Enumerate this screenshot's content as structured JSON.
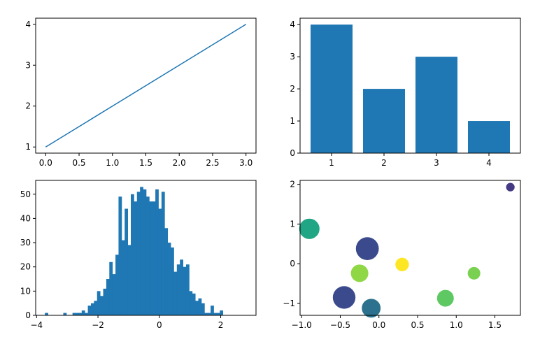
{
  "chart_data": [
    {
      "type": "line",
      "x": [
        0,
        1,
        2,
        3
      ],
      "y": [
        1,
        2,
        3,
        4
      ],
      "color": "#1f77b4",
      "xlim": [
        -0.15,
        3.15
      ],
      "ylim": [
        0.85,
        4.15
      ],
      "xticks": [
        0,
        0.5,
        1,
        1.5,
        2,
        2.5,
        3
      ],
      "xtick_labels": [
        "0.0",
        "0.5",
        "1.0",
        "1.5",
        "2.0",
        "2.5",
        "3.0"
      ],
      "yticks": [
        1,
        2,
        3,
        4
      ],
      "ytick_labels": [
        "1",
        "2",
        "3",
        "4"
      ],
      "grid": false
    },
    {
      "type": "bar",
      "categories": [
        1,
        2,
        3,
        4
      ],
      "values": [
        4,
        2,
        3,
        1
      ],
      "color": "#1f77b4",
      "xlim": [
        0.4,
        4.6
      ],
      "ylim": [
        0,
        4.2
      ],
      "xticks": [
        1,
        2,
        3,
        4
      ],
      "xtick_labels": [
        "1",
        "2",
        "3",
        "4"
      ],
      "yticks": [
        0,
        1,
        2,
        3,
        4
      ],
      "ytick_labels": [
        "0",
        "1",
        "2",
        "3",
        "4"
      ],
      "grid": false
    },
    {
      "type": "bar",
      "subtype": "histogram",
      "bin_start": -3.83,
      "bin_width": 0.1,
      "counts": [
        0,
        1,
        0,
        0,
        0,
        0,
        0,
        1,
        0,
        0,
        1,
        1,
        1,
        2,
        1,
        4,
        5,
        6,
        10,
        8,
        11,
        15,
        22,
        17,
        25,
        49,
        31,
        44,
        29,
        50,
        47,
        51,
        53,
        52,
        49,
        47,
        47,
        52,
        44,
        51,
        36,
        30,
        28,
        18,
        21,
        23,
        20,
        21,
        10,
        9,
        6,
        7,
        5,
        1,
        1,
        4,
        1,
        1,
        2
      ],
      "color": "#1f77b4",
      "xlim": [
        -4.03,
        3.15
      ],
      "ylim": [
        0,
        55.7
      ],
      "xticks": [
        -4,
        -2,
        0,
        2
      ],
      "xtick_labels": [
        "−4",
        "−2",
        "0",
        "2"
      ],
      "yticks": [
        0,
        10,
        20,
        30,
        40,
        50
      ],
      "ytick_labels": [
        "0",
        "10",
        "20",
        "30",
        "40",
        "50"
      ],
      "grid": false
    },
    {
      "type": "scatter",
      "points": [
        {
          "x": 1.7,
          "y": 1.93,
          "size": 60,
          "color": "#443a83"
        },
        {
          "x": -0.9,
          "y": 0.88,
          "size": 340,
          "color": "#21a685"
        },
        {
          "x": -0.15,
          "y": 0.38,
          "size": 430,
          "color": "#3b4a8c"
        },
        {
          "x": 0.3,
          "y": -0.02,
          "size": 150,
          "color": "#fde725"
        },
        {
          "x": -0.25,
          "y": -0.24,
          "size": 250,
          "color": "#8fd744"
        },
        {
          "x": 1.23,
          "y": -0.24,
          "size": 130,
          "color": "#7ad151"
        },
        {
          "x": 0.86,
          "y": -0.87,
          "size": 230,
          "color": "#5ec962"
        },
        {
          "x": -0.45,
          "y": -0.85,
          "size": 420,
          "color": "#3b4a8c"
        },
        {
          "x": -0.1,
          "y": -1.12,
          "size": 290,
          "color": "#2c728e"
        }
      ],
      "xlim": [
        -1.02,
        1.83
      ],
      "ylim": [
        -1.3,
        2.1
      ],
      "xticks": [
        -1,
        -0.5,
        0,
        0.5,
        1,
        1.5
      ],
      "xtick_labels": [
        "−1.0",
        "−0.5",
        "0.0",
        "0.5",
        "1.0",
        "1.5"
      ],
      "yticks": [
        -1,
        0,
        1,
        2
      ],
      "ytick_labels": [
        "−1",
        "0",
        "1",
        "2"
      ],
      "grid": false
    }
  ]
}
